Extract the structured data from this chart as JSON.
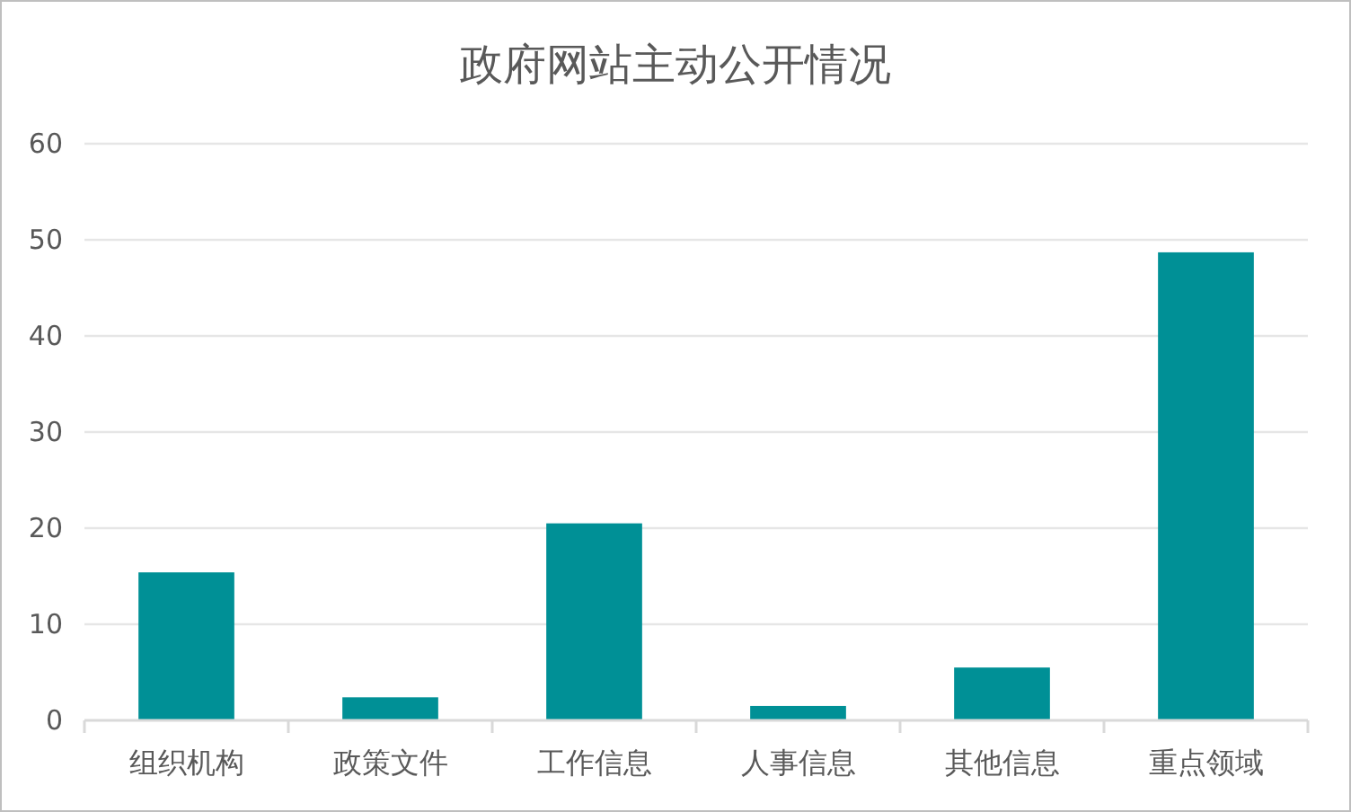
{
  "chart_data": {
    "type": "bar",
    "title": "政府网站主动公开情况",
    "categories": [
      "组织机构",
      "政策文件",
      "工作信息",
      "人事信息",
      "其他信息",
      "重点领域"
    ],
    "values": [
      15.4,
      2.4,
      20.5,
      1.5,
      5.5,
      48.7
    ],
    "color": "#009096",
    "ylim": [
      0,
      60
    ],
    "yticks": [
      0,
      10,
      20,
      30,
      40,
      50,
      60
    ],
    "grid": "y"
  }
}
